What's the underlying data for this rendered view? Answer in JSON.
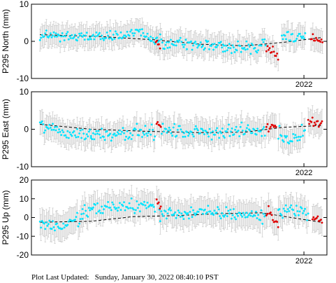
{
  "footer": {
    "label": "Plot Last Updated:",
    "value": "Sunday, January 30, 2022 08:40:10 PST"
  },
  "colors": {
    "routine": "#00e5ff",
    "recent": "#e00000",
    "error": "#c8c8c8",
    "trend": "#000000"
  },
  "chart_data": [
    {
      "type": "scatter",
      "station": "P295",
      "ylabel": "P295 North (mm)",
      "ylim": [
        -10,
        10
      ],
      "yticks": [
        -10,
        0,
        10
      ],
      "xlim": [
        2018.8,
        2022.27
      ],
      "xticks": [
        2022
      ],
      "xtick_labels": [
        "2022"
      ],
      "grid": false,
      "legend": "none",
      "error_mm": 3.0,
      "trend": {
        "x": [
          2018.9,
          2019.6,
          2020.25,
          2020.8,
          2021.3,
          2021.75,
          2022.2
        ],
        "y": [
          1.8,
          1.3,
          0.4,
          -0.8,
          -1.2,
          -0.3,
          1.0
        ]
      },
      "series": [
        {
          "marker": "cyan",
          "segments": [
            {
              "x0": 2018.9,
              "x1": 2019.55,
              "anchors": [
                [
                  2018.9,
                  1.5
                ],
                [
                  2019.2,
                  1.3
                ],
                [
                  2019.55,
                  1.0
                ]
              ],
              "spread": 1.3
            },
            {
              "x0": 2019.55,
              "x1": 2020.2,
              "anchors": [
                [
                  2019.55,
                  1.0
                ],
                [
                  2019.9,
                  1.6
                ],
                [
                  2020.05,
                  2.8
                ],
                [
                  2020.2,
                  1.2
                ]
              ],
              "spread": 1.4
            },
            {
              "x0": 2020.2,
              "x1": 2021.05,
              "anchors": [
                [
                  2020.2,
                  0.0
                ],
                [
                  2020.6,
                  -0.6
                ],
                [
                  2020.9,
                  -1.3
                ],
                [
                  2021.05,
                  -1.0
                ]
              ],
              "spread": 1.4
            },
            {
              "x0": 2021.05,
              "x1": 2021.55,
              "anchors": [
                [
                  2021.05,
                  -1.6
                ],
                [
                  2021.3,
                  -2.0
                ],
                [
                  2021.55,
                  -1.2
                ]
              ],
              "spread": 1.5
            },
            {
              "x0": 2021.74,
              "x1": 2022.02,
              "anchors": [
                [
                  2021.74,
                  1.8
                ],
                [
                  2021.88,
                  0.8
                ],
                [
                  2022.02,
                  1.5
                ]
              ],
              "spread": 1.2
            }
          ]
        },
        {
          "marker": "red",
          "segments": [
            {
              "x0": 2020.26,
              "x1": 2020.31,
              "anchors": [
                [
                  2020.26,
                  0.0
                ],
                [
                  2020.31,
                  -1.5
                ]
              ],
              "spread": 0.8
            },
            {
              "x0": 2021.56,
              "x1": 2021.7,
              "anchors": [
                [
                  2021.56,
                  -1.5
                ],
                [
                  2021.63,
                  -3.0
                ],
                [
                  2021.7,
                  -4.3
                ]
              ],
              "spread": 1.2
            },
            {
              "x0": 2022.08,
              "x1": 2022.22,
              "anchors": [
                [
                  2022.08,
                  1.0
                ],
                [
                  2022.22,
                  -0.2
                ]
              ],
              "spread": 0.8
            }
          ]
        }
      ]
    },
    {
      "type": "scatter",
      "station": "P295",
      "ylabel": "P295 East (mm)",
      "ylim": [
        -10,
        10
      ],
      "yticks": [
        -10,
        0,
        10
      ],
      "xlim": [
        2018.8,
        2022.27
      ],
      "xticks": [
        2022
      ],
      "xtick_labels": [
        "2022"
      ],
      "grid": false,
      "legend": "none",
      "error_mm": 3.2,
      "trend": {
        "x": [
          2018.9,
          2019.5,
          2020.1,
          2020.7,
          2021.3,
          2021.75,
          2022.2
        ],
        "y": [
          1.3,
          0.0,
          -0.5,
          -0.9,
          -0.8,
          0.5,
          1.0
        ]
      },
      "series": [
        {
          "marker": "cyan",
          "segments": [
            {
              "x0": 2018.9,
              "x1": 2019.5,
              "anchors": [
                [
                  2018.9,
                  1.0
                ],
                [
                  2019.2,
                  -1.0
                ],
                [
                  2019.5,
                  -1.5
                ]
              ],
              "spread": 1.5
            },
            {
              "x0": 2019.5,
              "x1": 2020.25,
              "anchors": [
                [
                  2019.5,
                  -1.5
                ],
                [
                  2019.9,
                  -0.8
                ],
                [
                  2020.25,
                  -0.8
                ]
              ],
              "spread": 1.6
            },
            {
              "x0": 2020.33,
              "x1": 2021.55,
              "anchors": [
                [
                  2020.33,
                  -0.5
                ],
                [
                  2020.8,
                  -0.8
                ],
                [
                  2021.2,
                  -0.5
                ],
                [
                  2021.55,
                  -0.5
                ]
              ],
              "spread": 1.5
            },
            {
              "x0": 2021.7,
              "x1": 2022.02,
              "anchors": [
                [
                  2021.7,
                  -1.5
                ],
                [
                  2021.85,
                  -2.8
                ],
                [
                  2022.02,
                  0.2
                ]
              ],
              "spread": 1.6
            }
          ]
        },
        {
          "marker": "red",
          "segments": [
            {
              "x0": 2020.27,
              "x1": 2020.32,
              "anchors": [
                [
                  2020.27,
                  2.0
                ],
                [
                  2020.32,
                  0.5
                ]
              ],
              "spread": 0.6
            },
            {
              "x0": 2021.56,
              "x1": 2021.68,
              "anchors": [
                [
                  2021.56,
                  0.5
                ],
                [
                  2021.68,
                  0.8
                ]
              ],
              "spread": 0.8
            },
            {
              "x0": 2022.05,
              "x1": 2022.22,
              "anchors": [
                [
                  2022.05,
                  2.5
                ],
                [
                  2022.22,
                  1.5
                ]
              ],
              "spread": 1.2
            }
          ]
        }
      ]
    },
    {
      "type": "scatter",
      "station": "P295",
      "ylabel": "P295 Up (mm)",
      "ylim": [
        -20,
        20
      ],
      "yticks": [
        -20,
        -10,
        0,
        10,
        20
      ],
      "xlim": [
        2018.8,
        2022.27
      ],
      "xticks": [
        2022
      ],
      "xtick_labels": [
        "2022"
      ],
      "grid": false,
      "legend": "none",
      "error_mm": 7.0,
      "trend": {
        "x": [
          2018.9,
          2019.5,
          2020.0,
          2020.5,
          2021.0,
          2021.5,
          2022.2
        ],
        "y": [
          -2.5,
          -2.0,
          0.5,
          1.0,
          2.0,
          2.5,
          -2.5
        ]
      },
      "series": [
        {
          "marker": "cyan",
          "segments": [
            {
              "x0": 2018.9,
              "x1": 2019.4,
              "anchors": [
                [
                  2018.9,
                  -3.0
                ],
                [
                  2019.15,
                  -5.0
                ],
                [
                  2019.4,
                  0.0
                ]
              ],
              "spread": 3.0
            },
            {
              "x0": 2019.4,
              "x1": 2020.25,
              "anchors": [
                [
                  2019.4,
                  3.0
                ],
                [
                  2019.8,
                  6.0
                ],
                [
                  2020.25,
                  6.0
                ]
              ],
              "spread": 3.5
            },
            {
              "x0": 2020.3,
              "x1": 2021.55,
              "anchors": [
                [
                  2020.3,
                  2.0
                ],
                [
                  2020.8,
                  2.5
                ],
                [
                  2021.2,
                  2.0
                ],
                [
                  2021.55,
                  0.5
                ]
              ],
              "spread": 3.0
            },
            {
              "x0": 2021.7,
              "x1": 2022.05,
              "anchors": [
                [
                  2021.7,
                  2.5
                ],
                [
                  2021.85,
                  5.0
                ],
                [
                  2022.05,
                  2.0
                ]
              ],
              "spread": 3.0
            }
          ]
        },
        {
          "marker": "red",
          "segments": [
            {
              "x0": 2020.27,
              "x1": 2020.33,
              "anchors": [
                [
                  2020.27,
                  10.0
                ],
                [
                  2020.33,
                  3.0
                ]
              ],
              "spread": 2.0
            },
            {
              "x0": 2021.56,
              "x1": 2021.7,
              "anchors": [
                [
                  2021.56,
                  3.0
                ],
                [
                  2021.7,
                  -3.0
                ]
              ],
              "spread": 3.0
            },
            {
              "x0": 2022.1,
              "x1": 2022.22,
              "anchors": [
                [
                  2022.1,
                  0.0
                ],
                [
                  2022.22,
                  -2.0
                ]
              ],
              "spread": 1.5
            }
          ]
        }
      ]
    }
  ]
}
